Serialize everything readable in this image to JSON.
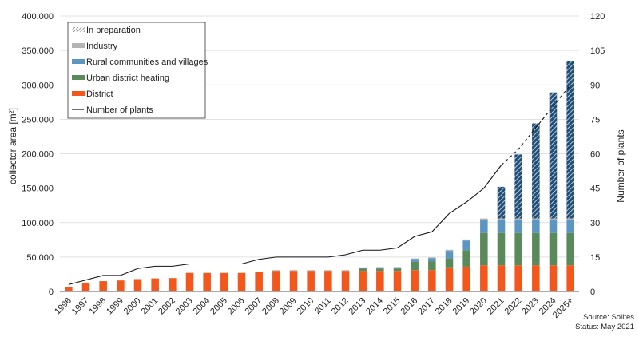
{
  "chart_data": {
    "type": "bar",
    "stacked": true,
    "y_left_label": "collector area [m²]",
    "y_right_label": "Number of plants",
    "ylim_left": [
      0,
      400000
    ],
    "ylim_right": [
      0,
      120
    ],
    "y_left_ticks": [
      "0",
      "50.000",
      "100.000",
      "150.000",
      "200.000",
      "250.000",
      "300.000",
      "350.000",
      "400.000"
    ],
    "y_right_ticks": [
      "0",
      "15",
      "30",
      "45",
      "60",
      "75",
      "90",
      "105",
      "120"
    ],
    "categories": [
      "1996",
      "1997",
      "1998",
      "1999",
      "2000",
      "2001",
      "2002",
      "2003",
      "2004",
      "2005",
      "2006",
      "2007",
      "2008",
      "2009",
      "2010",
      "2011",
      "2012",
      "2013",
      "2014",
      "2015",
      "2016",
      "2017",
      "2018",
      "2019",
      "2020",
      "2021",
      "2022",
      "2023",
      "2024",
      "2025+"
    ],
    "series": [
      {
        "name": "District",
        "color": "#f4571c",
        "values": [
          6000,
          12000,
          15000,
          16000,
          18000,
          19000,
          19500,
          27000,
          27000,
          27000,
          27000,
          29000,
          30000,
          30000,
          30000,
          30000,
          30000,
          30000,
          30000,
          30000,
          31000,
          31000,
          35000,
          36000,
          38000,
          38000,
          38000,
          38000,
          38000,
          38000
        ]
      },
      {
        "name": "Urban district heating",
        "color": "#5a8a5a",
        "values": [
          0,
          0,
          0,
          0,
          0,
          0,
          0,
          0,
          0,
          0,
          0,
          0,
          0,
          0,
          0,
          0,
          0,
          3000,
          3000,
          3000,
          12000,
          13000,
          13000,
          24000,
          47000,
          47000,
          47000,
          47000,
          47000,
          47000
        ]
      },
      {
        "name": "Rural communities and villages",
        "color": "#5b95c2",
        "values": [
          0,
          0,
          0,
          0,
          0,
          0,
          0,
          0,
          0,
          0,
          0,
          0,
          0,
          0,
          0,
          0,
          0,
          1000,
          1500,
          1500,
          4000,
          4500,
          11000,
          14000,
          19000,
          19000,
          19000,
          19000,
          19000,
          19000
        ]
      },
      {
        "name": "Industry",
        "color": "#b4b4b4",
        "values": [
          0,
          0,
          0,
          0,
          0,
          0,
          0,
          0,
          0,
          0,
          0,
          0,
          1000,
          1000,
          1000,
          1000,
          1000,
          1000,
          1000,
          1000,
          1000,
          1000,
          1500,
          1500,
          2000,
          2000,
          2000,
          2000,
          2000,
          2000
        ]
      },
      {
        "name": "In preparation",
        "color": "#1f4e79",
        "values": [
          0,
          0,
          0,
          0,
          0,
          0,
          0,
          0,
          0,
          0,
          0,
          0,
          0,
          0,
          0,
          0,
          0,
          0,
          0,
          0,
          0,
          0,
          0,
          0,
          0,
          46000,
          93000,
          138000,
          183000,
          229000
        ]
      }
    ],
    "line": {
      "name": "Number of plants",
      "values": [
        3,
        5,
        7,
        7,
        10,
        11,
        11,
        12,
        12,
        12,
        12,
        14,
        15,
        15,
        15,
        15,
        16,
        18,
        18,
        19,
        24,
        26,
        34,
        39,
        45,
        55,
        62,
        null,
        null,
        90
      ],
      "dashed_from_index": 25
    },
    "notes": [
      "Source: Solites",
      "Status: May 2021"
    ]
  }
}
